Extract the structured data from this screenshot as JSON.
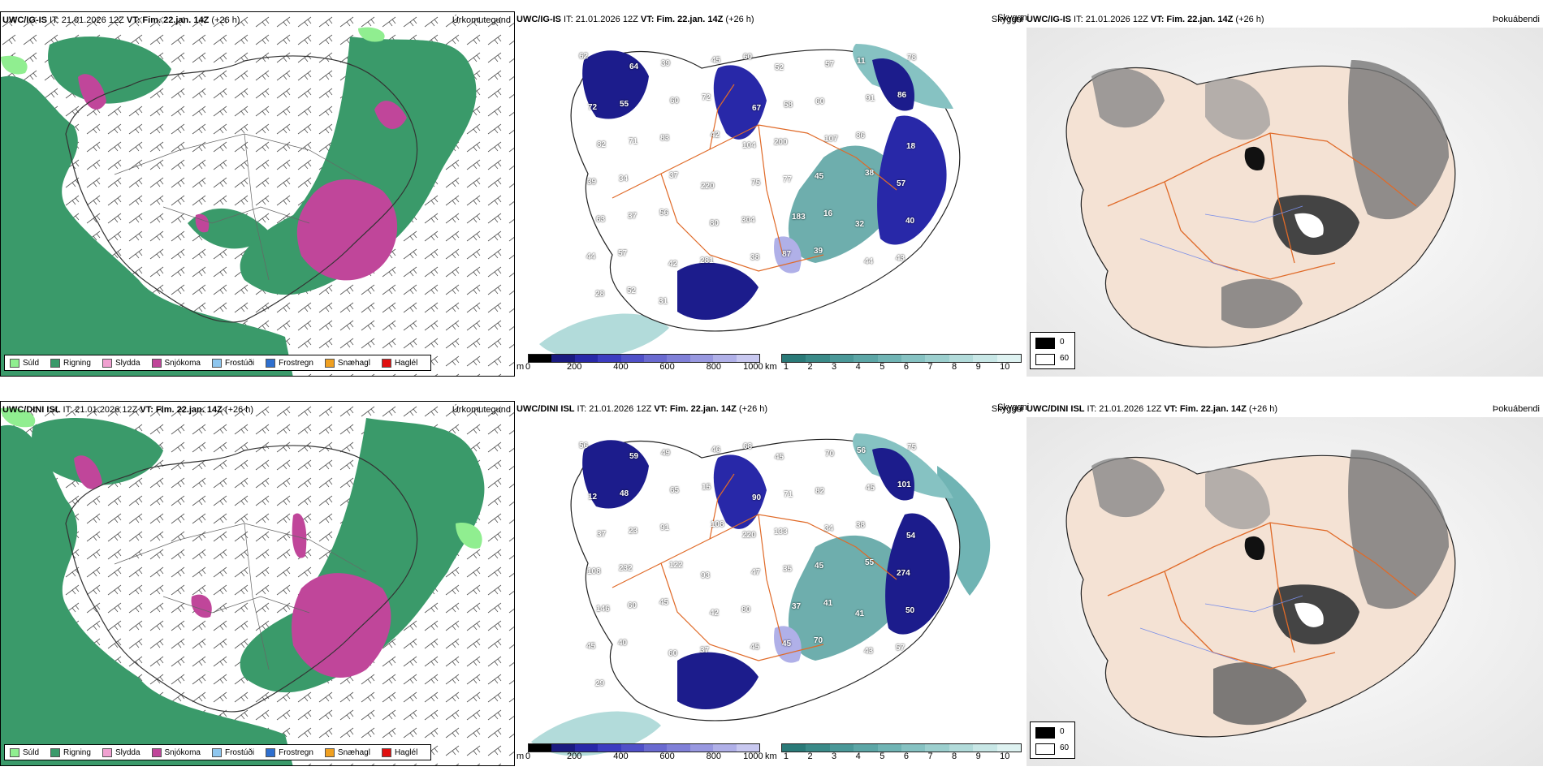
{
  "top": {
    "precip": {
      "title_model": "UWC/IG-IS",
      "title_it": " IT: 21.01.2026 12Z ",
      "title_vt": "VT: Fim. 22.jan. 14Z",
      "title_lead": " (+26 h)",
      "right_label": "Úrkomutegund"
    },
    "cloud": {
      "title_model": "UWC/IG-IS",
      "title_it": " IT: 21.01.2026 12Z ",
      "title_vt": "VT: Fim. 22.jan. 14Z",
      "title_lead": " (+26 h)",
      "right_label": "Skyggni",
      "values": [
        "62",
        "64",
        "39",
        "45",
        "60",
        "52",
        "57",
        "11",
        "78",
        "72",
        "55",
        "60",
        "72",
        "67",
        "58",
        "60",
        "91",
        "86",
        "82",
        "71",
        "83",
        "42",
        "104",
        "200",
        "107",
        "86",
        "18",
        "39",
        "34",
        "37",
        "220",
        "75",
        "77",
        "45",
        "38",
        "57",
        "63",
        "37",
        "56",
        "80",
        "304",
        "183",
        "16",
        "32",
        "40",
        "44",
        "57",
        "42",
        "281",
        "38",
        "87",
        "39",
        "44",
        "43",
        "28",
        "52",
        "31"
      ]
    },
    "fog": {
      "title_model": "UWC/IG-IS",
      "title_it": " IT: 21.01.2026 12Z ",
      "title_vt": "VT: Fim. 22.jan. 14Z",
      "title_lead": " (+26 h)",
      "right_label": "Þokuábendi"
    }
  },
  "bottom": {
    "precip": {
      "title_model": "UWC/DINI ISL",
      "title_it": " IT: 21.01.2026 12Z ",
      "title_vt": "VT: Fim. 22.jan. 14Z",
      "title_lead": " (+26 h)",
      "right_label": "Úrkomutegund"
    },
    "cloud": {
      "title_model": "UWC/DINI ISL",
      "title_it": " IT: 21.01.2026 12Z ",
      "title_vt": "VT: Fim. 22.jan. 14Z",
      "title_lead": " (+26 h)",
      "right_label": "Skyggni",
      "values": [
        "56",
        "59",
        "49",
        "46",
        "68",
        "45",
        "70",
        "56",
        "75",
        "12",
        "48",
        "65",
        "15",
        "90",
        "71",
        "82",
        "45",
        "101",
        "37",
        "23",
        "91",
        "108",
        "220",
        "133",
        "34",
        "38",
        "54",
        "108",
        "232",
        "122",
        "93",
        "47",
        "35",
        "45",
        "55",
        "274",
        "146",
        "60",
        "45",
        "42",
        "80",
        "37",
        "41",
        "41",
        "50",
        "45",
        "40",
        "60",
        "37",
        "45",
        "45",
        "70",
        "43",
        "57",
        "29"
      ]
    },
    "fog": {
      "title_model": "UWC/DINI ISL",
      "title_it": " IT: 21.01.2026 12Z ",
      "title_vt": "VT: Fim. 22.jan. 14Z",
      "title_lead": " (+26 h)",
      "right_label": "Þokuábendi"
    }
  },
  "precip_legend": [
    {
      "label": "Súld",
      "color": "#90ee90"
    },
    {
      "label": "Rigning",
      "color": "#3a9a6a"
    },
    {
      "label": "Slydda",
      "color": "#f0a0d0"
    },
    {
      "label": "Snjókoma",
      "color": "#c0469a"
    },
    {
      "label": "Frostúði",
      "color": "#8ec6ee"
    },
    {
      "label": "Frostregn",
      "color": "#2e6fcf"
    },
    {
      "label": "Snæhagl",
      "color": "#f0a020"
    },
    {
      "label": "Haglél",
      "color": "#e01010"
    }
  ],
  "cloud_base_scale": {
    "unit": "m",
    "ticks": [
      "0",
      "200",
      "400",
      "600",
      "800",
      "1000"
    ],
    "colors": [
      "#000000",
      "#1a1a80",
      "#2828a8",
      "#3c3cc0",
      "#5050c8",
      "#6a6ad0",
      "#8080d8",
      "#9898e0",
      "#b0b0e8",
      "#c8c8f0"
    ]
  },
  "visibility_scale": {
    "unit": "km",
    "ticks": [
      "1",
      "2",
      "3",
      "4",
      "5",
      "6",
      "7",
      "8",
      "9",
      "10"
    ],
    "colors": [
      "#2a7a78",
      "#3a8a88",
      "#4a9898",
      "#5ca6a6",
      "#70b4b4",
      "#86c2c2",
      "#9ccfce",
      "#b2dbda",
      "#c8e7e6",
      "#def2f1"
    ]
  },
  "fog_scale": {
    "values": [
      "0",
      "60"
    ],
    "colors": [
      "#000000",
      "#ffffff"
    ]
  },
  "colors": {
    "rain": "#3a9a6a",
    "snow": "#c0469a",
    "sleet": "#f0a0d0",
    "drizzle": "#90ee90",
    "land_fog": "#f4e2d4",
    "roads": "#e06a28",
    "cloud_dark": "#1c1c8c",
    "vis_teal": "#4a9a98"
  }
}
